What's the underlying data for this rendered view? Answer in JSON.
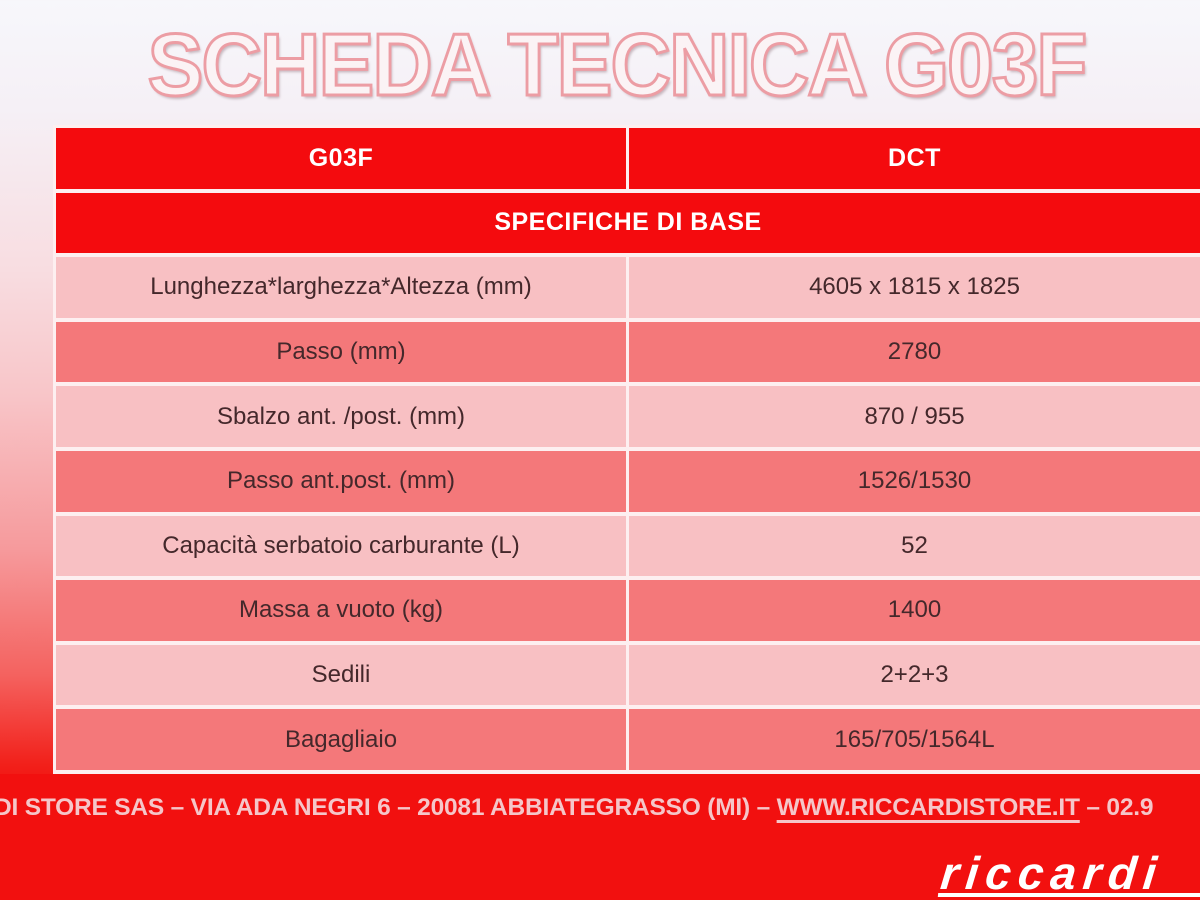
{
  "title": "SCHEDA TECNICA G03F",
  "table": {
    "header": {
      "col1": "G03F",
      "col2": "DCT"
    },
    "section": "SPECIFICHE DI BASE",
    "rows": [
      {
        "label": "Lunghezza*larghezza*Altezza (mm)",
        "value": "4605 x 1815 x 1825"
      },
      {
        "label": "Passo (mm)",
        "value": "2780"
      },
      {
        "label": "Sbalzo ant. /post. (mm)",
        "value": "870 / 955"
      },
      {
        "label": "Passo ant.post. (mm)",
        "value": "1526/1530"
      },
      {
        "label": "Capacità serbatoio carburante (L)",
        "value": "52"
      },
      {
        "label": "Massa a vuoto (kg)",
        "value": "1400"
      },
      {
        "label": "Sedili",
        "value": "2+2+3"
      },
      {
        "label": "Bagagliaio",
        "value": "165/705/1564L"
      }
    ]
  },
  "footer": {
    "text_before_link": "DI STORE SAS – VIA ADA NEGRI 6 – 20081 ABBIATEGRASSO (MI) – ",
    "link": "WWW.RICCARDISTORE.IT",
    "text_after_link": " – 02.9"
  },
  "logo": {
    "text": "riccardi"
  },
  "colors": {
    "accent_red": "#f2100f",
    "header_red": "#f40b0e",
    "row_light_pink": "#f8c0c3",
    "row_medium_pink": "#f4787a",
    "table_text": "#44282b",
    "footer_text": "#f5c6c9",
    "title_outline": "#ec9da4"
  }
}
